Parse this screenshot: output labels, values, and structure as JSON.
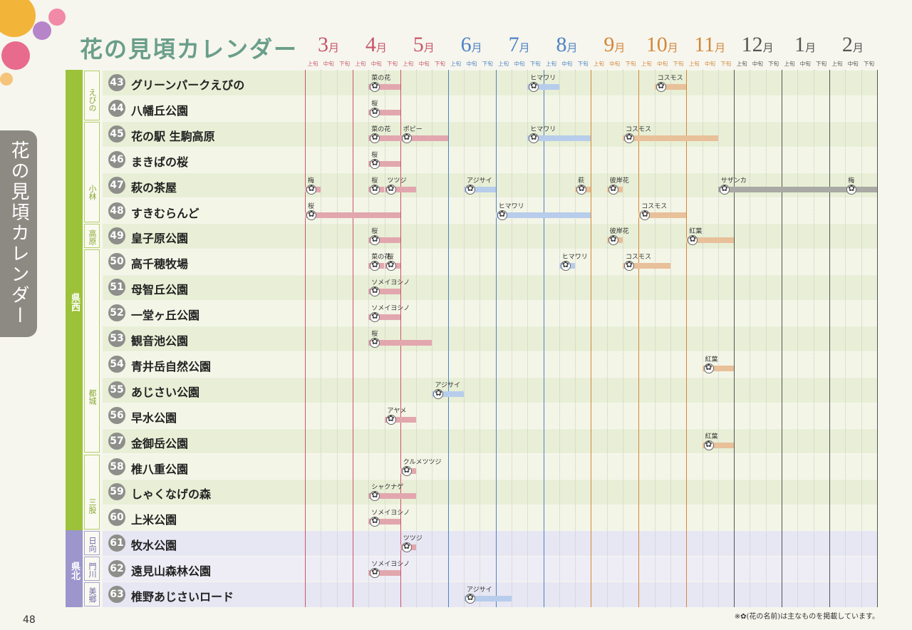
{
  "page": {
    "title": "花の見頃カレンダー",
    "side_tab": "花の見頃カレンダー",
    "page_number": "48",
    "footnote": "※✿(花の名前)は主なものを掲載しています。"
  },
  "months": [
    {
      "label": "3",
      "unit": "月",
      "color": "#c8566b"
    },
    {
      "label": "4",
      "unit": "月",
      "color": "#c8566b"
    },
    {
      "label": "5",
      "unit": "月",
      "color": "#c8566b"
    },
    {
      "label": "6",
      "unit": "月",
      "color": "#4f82c4"
    },
    {
      "label": "7",
      "unit": "月",
      "color": "#4f82c4"
    },
    {
      "label": "8",
      "unit": "月",
      "color": "#4f82c4"
    },
    {
      "label": "9",
      "unit": "月",
      "color": "#d3873a"
    },
    {
      "label": "10",
      "unit": "月",
      "color": "#d3873a"
    },
    {
      "label": "11",
      "unit": "月",
      "color": "#d3873a"
    },
    {
      "label": "12",
      "unit": "月",
      "color": "#555555"
    },
    {
      "label": "1",
      "unit": "月",
      "color": "#555555"
    },
    {
      "label": "2",
      "unit": "月",
      "color": "#555555"
    }
  ],
  "periods": [
    "上旬",
    "中旬",
    "下旬"
  ],
  "colors": {
    "spring": "#e2a7ae",
    "summer": "#b7cdeb",
    "autumn": "#e8c09a",
    "winter": "#a9a9a5",
    "green": "#9cc23a",
    "purple": "#9b96cc"
  },
  "regions": [
    {
      "label": "県西",
      "color": "#9cc23a",
      "first_row": 0,
      "last_row": 17
    },
    {
      "label": "県北",
      "color": "#9b96cc",
      "first_row": 18,
      "last_row": 20
    }
  ],
  "areas": [
    {
      "label": "えびの",
      "first_row": 0,
      "last_row": 1,
      "style": "green"
    },
    {
      "label": "小林",
      "first_row": 2,
      "last_row": 5,
      "style": "green"
    },
    {
      "label": "高原",
      "first_row": 6,
      "last_row": 6,
      "style": "green"
    },
    {
      "label": "都城",
      "first_row": 7,
      "last_row": 14,
      "style": "green"
    },
    {
      "label": "三股",
      "first_row": 15,
      "last_row": 17,
      "style": "green"
    },
    {
      "label": "日向",
      "first_row": 18,
      "last_row": 18,
      "style": "purple"
    },
    {
      "label": "門川",
      "first_row": 19,
      "last_row": 19,
      "style": "purple"
    },
    {
      "label": "美郷",
      "first_row": 20,
      "last_row": 20,
      "style": "purple"
    }
  ],
  "places": [
    {
      "num": "43",
      "name": "グリーンパークえびの",
      "flowers": [
        {
          "name": "菜の花",
          "start": 4,
          "end": 6,
          "season": "spring"
        },
        {
          "name": "ヒマワリ",
          "start": 14,
          "end": 16,
          "season": "summer"
        },
        {
          "name": "コスモス",
          "start": 22,
          "end": 24,
          "season": "autumn"
        }
      ]
    },
    {
      "num": "44",
      "name": "八幡丘公園",
      "flowers": [
        {
          "name": "桜",
          "start": 4,
          "end": 6,
          "season": "spring"
        }
      ]
    },
    {
      "num": "45",
      "name": "花の駅 生駒高原",
      "flowers": [
        {
          "name": "菜の花",
          "start": 4,
          "end": 6,
          "season": "spring"
        },
        {
          "name": "ポピー",
          "start": 6,
          "end": 9,
          "season": "spring"
        },
        {
          "name": "ヒマワリ",
          "start": 14,
          "end": 18,
          "season": "summer"
        },
        {
          "name": "コスモス",
          "start": 20,
          "end": 26,
          "season": "autumn"
        }
      ]
    },
    {
      "num": "46",
      "name": "まきばの桜",
      "flowers": [
        {
          "name": "桜",
          "start": 4,
          "end": 6,
          "season": "spring"
        }
      ]
    },
    {
      "num": "47",
      "name": "萩の茶屋",
      "flowers": [
        {
          "name": "梅",
          "start": 0,
          "end": 1,
          "season": "spring"
        },
        {
          "name": "桜",
          "start": 4,
          "end": 5,
          "season": "spring"
        },
        {
          "name": "ツツジ",
          "start": 5,
          "end": 7,
          "season": "spring"
        },
        {
          "name": "アジサイ",
          "start": 10,
          "end": 12,
          "season": "summer"
        },
        {
          "name": "萩",
          "start": 17,
          "end": 18,
          "season": "autumn"
        },
        {
          "name": "彼岸花",
          "start": 19,
          "end": 20,
          "season": "autumn"
        },
        {
          "name": "サザンカ",
          "start": 26,
          "end": 35,
          "season": "winter"
        },
        {
          "name": "梅",
          "start": 34,
          "end": 36,
          "season": "winter"
        }
      ]
    },
    {
      "num": "48",
      "name": "すきむらんど",
      "flowers": [
        {
          "name": "桜",
          "start": 0,
          "end": 6,
          "season": "spring"
        },
        {
          "name": "ヒマワリ",
          "start": 12,
          "end": 18,
          "season": "summer"
        },
        {
          "name": "コスモス",
          "start": 21,
          "end": 24,
          "season": "autumn"
        }
      ]
    },
    {
      "num": "49",
      "name": "皇子原公園",
      "flowers": [
        {
          "name": "桜",
          "start": 4,
          "end": 6,
          "season": "spring"
        },
        {
          "name": "彼岸花",
          "start": 19,
          "end": 20,
          "season": "autumn"
        },
        {
          "name": "紅葉",
          "start": 24,
          "end": 27,
          "season": "autumn"
        }
      ]
    },
    {
      "num": "50",
      "name": "高千穂牧場",
      "flowers": [
        {
          "name": "菜の花",
          "start": 4,
          "end": 5,
          "season": "spring"
        },
        {
          "name": "桜",
          "start": 5,
          "end": 6,
          "season": "spring"
        },
        {
          "name": "ヒマワリ",
          "start": 16,
          "end": 17,
          "season": "summer"
        },
        {
          "name": "コスモス",
          "start": 20,
          "end": 23,
          "season": "autumn"
        }
      ]
    },
    {
      "num": "51",
      "name": "母智丘公園",
      "flowers": [
        {
          "name": "ソメイヨシノ",
          "start": 4,
          "end": 6,
          "season": "spring"
        }
      ]
    },
    {
      "num": "52",
      "name": "一堂ヶ丘公園",
      "flowers": [
        {
          "name": "ソメイヨシノ",
          "start": 4,
          "end": 6,
          "season": "spring"
        }
      ]
    },
    {
      "num": "53",
      "name": "観音池公園",
      "flowers": [
        {
          "name": "桜",
          "start": 4,
          "end": 8,
          "season": "spring"
        }
      ]
    },
    {
      "num": "54",
      "name": "青井岳自然公園",
      "flowers": [
        {
          "name": "紅葉",
          "start": 25,
          "end": 27,
          "season": "autumn"
        }
      ]
    },
    {
      "num": "55",
      "name": "あじさい公園",
      "flowers": [
        {
          "name": "アジサイ",
          "start": 8,
          "end": 10,
          "season": "summer"
        }
      ]
    },
    {
      "num": "56",
      "name": "早水公園",
      "flowers": [
        {
          "name": "アヤメ",
          "start": 5,
          "end": 7,
          "season": "spring"
        }
      ]
    },
    {
      "num": "57",
      "name": "金御岳公園",
      "flowers": [
        {
          "name": "紅葉",
          "start": 25,
          "end": 27,
          "season": "autumn"
        }
      ]
    },
    {
      "num": "58",
      "name": "椎八重公園",
      "flowers": [
        {
          "name": "クルメツツジ",
          "start": 6,
          "end": 7,
          "season": "spring"
        }
      ]
    },
    {
      "num": "59",
      "name": "しゃくなげの森",
      "flowers": [
        {
          "name": "シャクナゲ",
          "start": 4,
          "end": 7,
          "season": "spring"
        }
      ]
    },
    {
      "num": "60",
      "name": "上米公園",
      "flowers": [
        {
          "name": "ソメイヨシノ",
          "start": 4,
          "end": 6,
          "season": "spring"
        }
      ]
    },
    {
      "num": "61",
      "name": "牧水公園",
      "flowers": [
        {
          "name": "ツツジ",
          "start": 6,
          "end": 7,
          "season": "spring"
        }
      ]
    },
    {
      "num": "62",
      "name": "遠見山森林公園",
      "flowers": [
        {
          "name": "ソメイヨシノ",
          "start": 4,
          "end": 6,
          "season": "spring"
        }
      ]
    },
    {
      "num": "63",
      "name": "椎野あじさいロード",
      "flowers": [
        {
          "name": "アジサイ",
          "start": 10,
          "end": 13,
          "season": "summer"
        }
      ]
    }
  ]
}
